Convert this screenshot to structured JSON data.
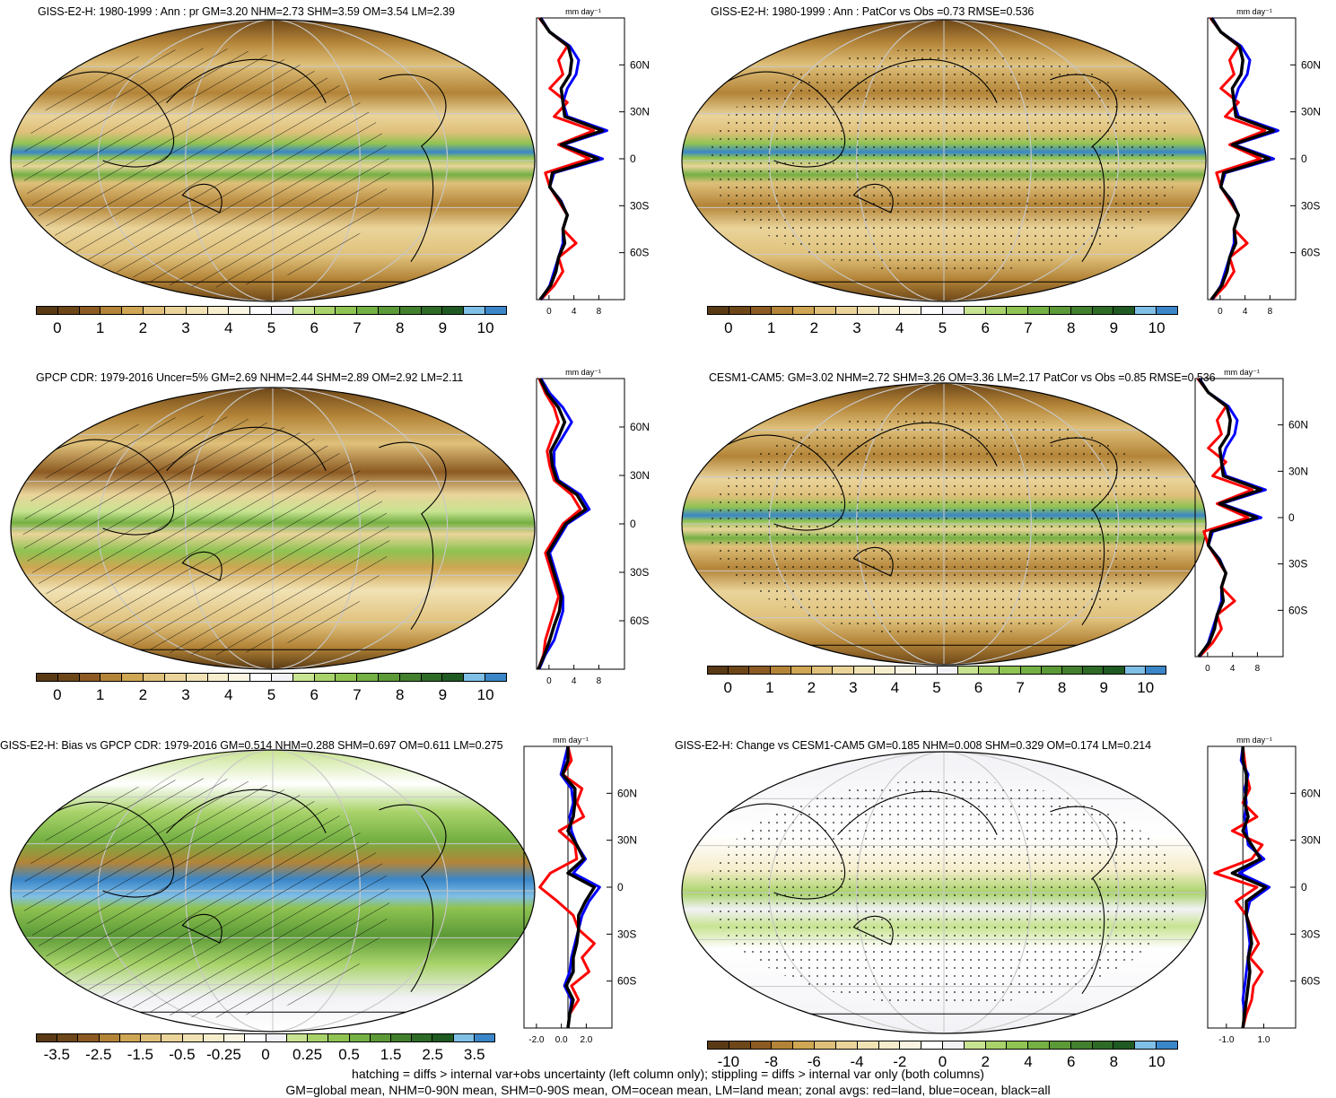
{
  "panels": [
    {
      "id": "p1",
      "title": "GISS-E2-H: 1980-1999 : Ann : pr GM=3.20 NHM=2.73 SHM=3.59 OM=3.54 LM=2.39",
      "units": "mm day⁻¹",
      "colorbar": "abs",
      "zonal_xticks": [
        "0",
        "4",
        "8"
      ],
      "hatch": true,
      "stipple": false,
      "style": "model"
    },
    {
      "id": "p2",
      "title": "GISS-E2-H: 1980-1999 : Ann : PatCor vs Obs =0.73 RMSE=0.536",
      "units": "mm day⁻¹",
      "colorbar": "abs",
      "zonal_xticks": [
        "0",
        "4",
        "8"
      ],
      "hatch": false,
      "stipple": true,
      "style": "model"
    },
    {
      "id": "p3",
      "title": "GPCP CDR: 1979-2016 Uncer=5% GM=2.69 NHM=2.44 SHM=2.89 OM=2.92 LM=2.11",
      "units": "mm day⁻¹",
      "colorbar": "abs",
      "zonal_xticks": [
        "0",
        "4",
        "8"
      ],
      "hatch": true,
      "stipple": false,
      "style": "obs"
    },
    {
      "id": "p4",
      "title": "CESM1-CAM5: GM=3.02 NHM=2.72 SHM=3.26 OM=3.36 LM=2.17 PatCor vs Obs =0.85 RMSE=0.536",
      "units": "mm day⁻¹",
      "colorbar": "abs",
      "zonal_xticks": [
        "0",
        "4",
        "8"
      ],
      "hatch": false,
      "stipple": true,
      "style": "model"
    },
    {
      "id": "p5",
      "title": "GISS-E2-H: Bias vs GPCP CDR: 1979-2016 GM=0.514 NHM=0.288 SHM=0.697 OM=0.611 LM=0.275",
      "units": "mm day⁻¹",
      "colorbar": "bias",
      "zonal_xticks": [
        "-2.0",
        "0.0",
        "2.0"
      ],
      "hatch": true,
      "stipple": false,
      "style": "bias"
    },
    {
      "id": "p6",
      "title": "GISS-E2-H: Change vs CESM1-CAM5 GM=0.185 NHM=0.008 SHM=0.329 OM=0.174 LM=0.214",
      "units": "mm day⁻¹",
      "colorbar": "change",
      "zonal_xticks": [
        "-1.0",
        "1.0"
      ],
      "hatch": false,
      "stipple": true,
      "style": "change"
    }
  ],
  "lat_ticks": [
    "60N",
    "30N",
    "0",
    "30S",
    "60S"
  ],
  "colorbars": {
    "abs": {
      "labels": [
        "0",
        "1",
        "2",
        "3",
        "4",
        "5",
        "6",
        "7",
        "8",
        "9",
        "10"
      ],
      "colors": [
        "#5a3a14",
        "#6e4718",
        "#8c5a22",
        "#b38438",
        "#cfa653",
        "#dfc07a",
        "#ead49a",
        "#f1e2b4",
        "#f6edcc",
        "#faf5e2",
        "#ffffff",
        "#f2f2f6",
        "#c8e391",
        "#a9d36a",
        "#8fc352",
        "#74b043",
        "#5c9a37",
        "#43802d",
        "#2e6b27",
        "#1f5a22",
        "#80bfe6",
        "#3a86c8"
      ]
    },
    "bias": {
      "labels": [
        "-3.5",
        "-2.5",
        "-1.5",
        "-0.5",
        "-0.25",
        "0",
        "0.25",
        "0.5",
        "1.5",
        "2.5",
        "3.5"
      ],
      "colors": [
        "#5a3a14",
        "#6e4718",
        "#8c5a22",
        "#b38438",
        "#cfa653",
        "#dfc07a",
        "#ead49a",
        "#f1e2b4",
        "#f6edcc",
        "#faf5e2",
        "#ffffff",
        "#f2f2f6",
        "#c8e391",
        "#a9d36a",
        "#8fc352",
        "#74b043",
        "#5c9a37",
        "#43802d",
        "#2e6b27",
        "#1f5a22",
        "#80bfe6",
        "#3a86c8"
      ]
    },
    "change": {
      "labels": [
        "-10",
        "-8",
        "-6",
        "-4",
        "-2",
        "0",
        "2",
        "4",
        "6",
        "8",
        "10"
      ],
      "colors": [
        "#5a3a14",
        "#6e4718",
        "#8c5a22",
        "#b38438",
        "#cfa653",
        "#dfc07a",
        "#ead49a",
        "#f1e2b4",
        "#f6edcc",
        "#faf5e2",
        "#ffffff",
        "#f2f2f6",
        "#c8e391",
        "#a9d36a",
        "#8fc352",
        "#74b043",
        "#5c9a37",
        "#43802d",
        "#2e6b27",
        "#1f5a22",
        "#80bfe6",
        "#3a86c8"
      ]
    }
  },
  "zonal_colors": {
    "land": "#ff0000",
    "ocean": "#0000ff",
    "all": "#000000"
  },
  "footer": {
    "line1": "hatching = diffs > internal var+obs uncertainty (left column only); stippling = diffs > internal var only (both columns)",
    "line2": "GM=global mean, NHM=0-90N mean, SHM=0-90S mean, OM=ocean mean, LM=land mean; zonal avgs: red=land, blue=ocean, black=all"
  }
}
